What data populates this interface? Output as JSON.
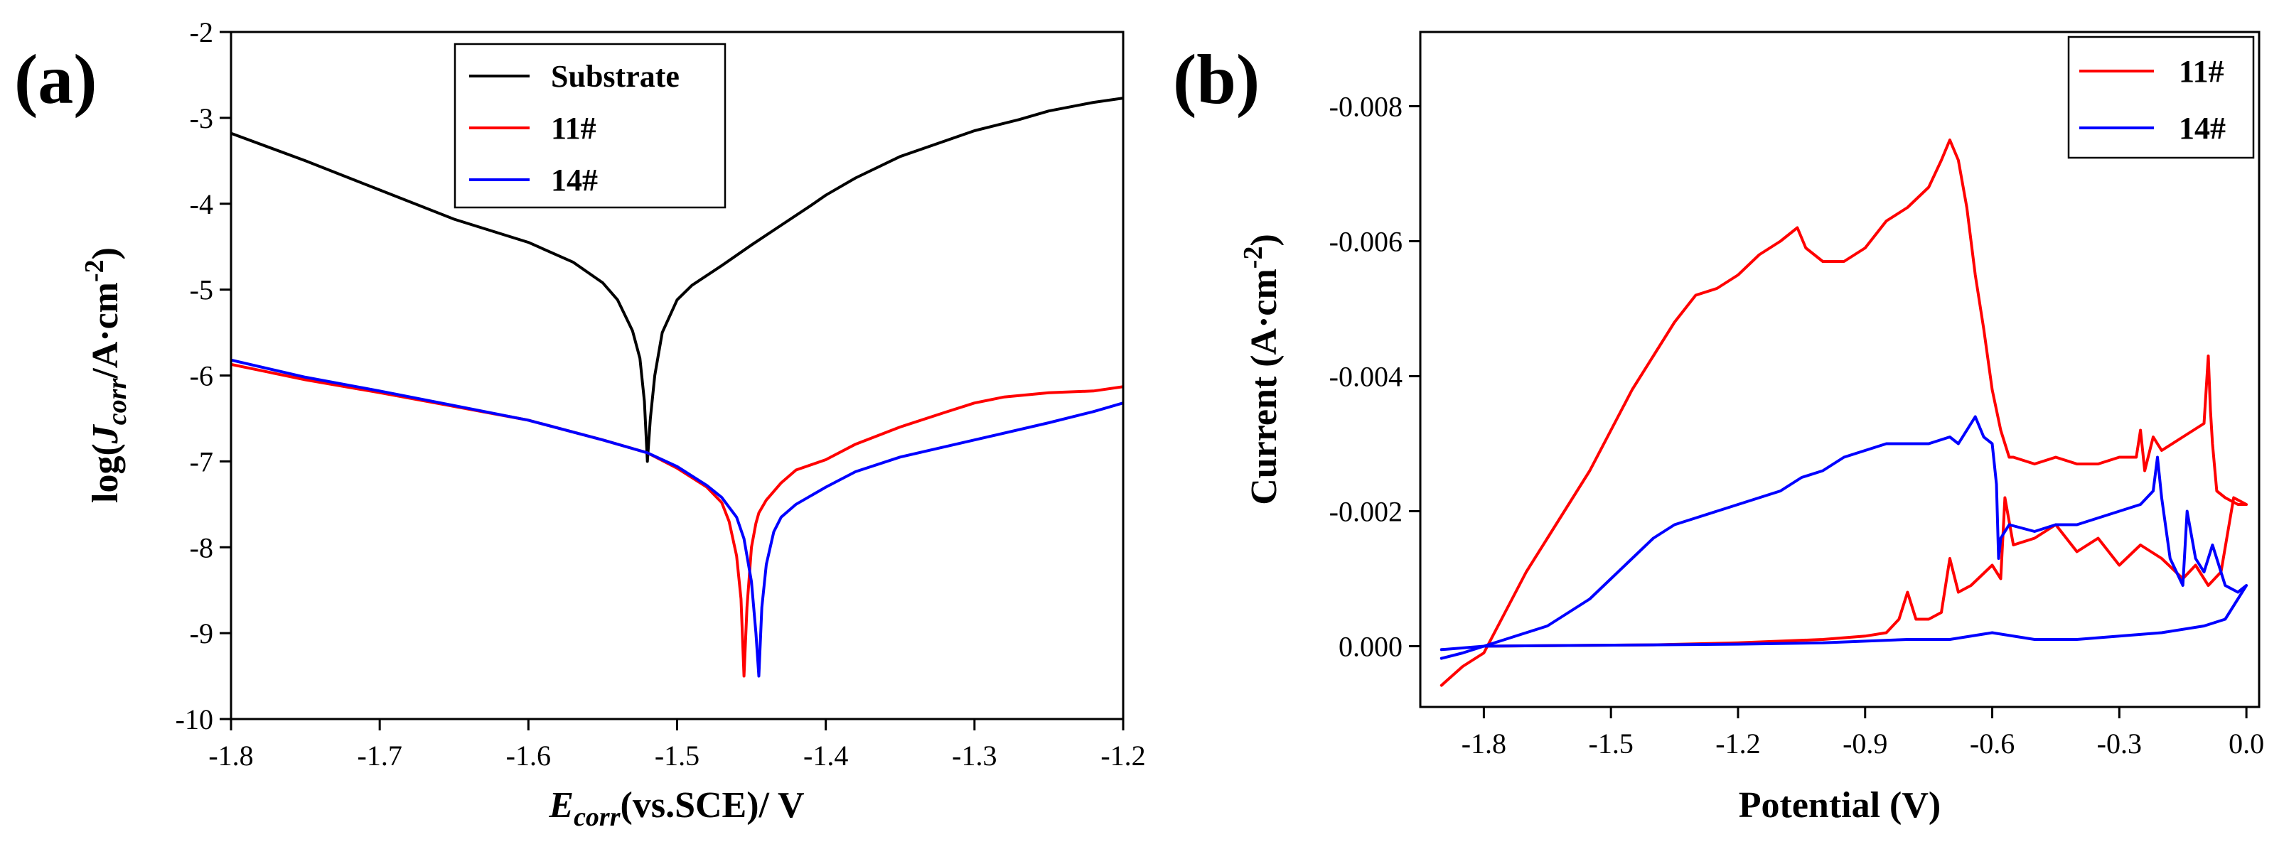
{
  "chart_data": [
    {
      "panel": "(a)",
      "type": "line",
      "xlabel_main": "E",
      "xlabel_sub": "corr",
      "xlabel_rest": "(vs.SCE)/ V",
      "ylabel_pre": "log(",
      "ylabel_main": "J",
      "ylabel_sub": "corr",
      "ylabel_rest": "/A·cm",
      "ylabel_sup": "-2",
      "ylabel_close": ")",
      "xlim": [
        -1.8,
        -1.2
      ],
      "ylim": [
        -10,
        -2
      ],
      "xticks": [
        -1.8,
        -1.7,
        -1.6,
        -1.5,
        -1.4,
        -1.3,
        -1.2
      ],
      "xtick_labels": [
        "-1.8",
        "-1.7",
        "-1.6",
        "-1.5",
        "-1.4",
        "-1.3",
        "-1.2"
      ],
      "yticks": [
        -10,
        -9,
        -8,
        -7,
        -6,
        -5,
        -4,
        -3,
        -2
      ],
      "ytick_labels": [
        "-10",
        "-9",
        "-8",
        "-7",
        "-6",
        "-5",
        "-4",
        "-3",
        "-2"
      ],
      "legend_position": "top-center",
      "series": [
        {
          "name": "Substrate",
          "color": "#000000",
          "x": [
            -1.8,
            -1.75,
            -1.7,
            -1.65,
            -1.6,
            -1.57,
            -1.55,
            -1.54,
            -1.53,
            -1.525,
            -1.522,
            -1.52,
            -1.518,
            -1.515,
            -1.51,
            -1.5,
            -1.49,
            -1.47,
            -1.45,
            -1.43,
            -1.41,
            -1.4,
            -1.38,
            -1.35,
            -1.3,
            -1.27,
            -1.25,
            -1.22,
            -1.2
          ],
          "y": [
            -3.18,
            -3.5,
            -3.84,
            -4.18,
            -4.45,
            -4.68,
            -4.92,
            -5.12,
            -5.48,
            -5.8,
            -6.3,
            -7.0,
            -6.5,
            -6.0,
            -5.5,
            -5.12,
            -4.95,
            -4.72,
            -4.48,
            -4.25,
            -4.02,
            -3.9,
            -3.7,
            -3.45,
            -3.15,
            -3.02,
            -2.92,
            -2.82,
            -2.77
          ]
        },
        {
          "name": "11#",
          "color": "#ff0000",
          "x": [
            -1.8,
            -1.75,
            -1.7,
            -1.65,
            -1.6,
            -1.55,
            -1.52,
            -1.5,
            -1.48,
            -1.47,
            -1.465,
            -1.46,
            -1.457,
            -1.455,
            -1.453,
            -1.45,
            -1.447,
            -1.445,
            -1.44,
            -1.43,
            -1.42,
            -1.4,
            -1.38,
            -1.35,
            -1.32,
            -1.3,
            -1.28,
            -1.25,
            -1.22,
            -1.2
          ],
          "y": [
            -5.87,
            -6.05,
            -6.2,
            -6.36,
            -6.52,
            -6.75,
            -6.9,
            -7.08,
            -7.3,
            -7.48,
            -7.7,
            -8.1,
            -8.6,
            -9.5,
            -8.7,
            -8.0,
            -7.72,
            -7.6,
            -7.45,
            -7.25,
            -7.1,
            -6.98,
            -6.8,
            -6.6,
            -6.43,
            -6.32,
            -6.25,
            -6.2,
            -6.18,
            -6.13
          ]
        },
        {
          "name": "14#",
          "color": "#0000ff",
          "x": [
            -1.8,
            -1.75,
            -1.7,
            -1.65,
            -1.6,
            -1.55,
            -1.52,
            -1.5,
            -1.48,
            -1.47,
            -1.46,
            -1.455,
            -1.45,
            -1.447,
            -1.445,
            -1.443,
            -1.44,
            -1.435,
            -1.43,
            -1.42,
            -1.41,
            -1.4,
            -1.38,
            -1.35,
            -1.3,
            -1.25,
            -1.22,
            -1.2
          ],
          "y": [
            -5.82,
            -6.02,
            -6.18,
            -6.35,
            -6.52,
            -6.75,
            -6.9,
            -7.06,
            -7.28,
            -7.42,
            -7.65,
            -7.9,
            -8.4,
            -9.0,
            -9.5,
            -8.7,
            -8.2,
            -7.82,
            -7.65,
            -7.5,
            -7.4,
            -7.3,
            -7.12,
            -6.95,
            -6.75,
            -6.55,
            -6.42,
            -6.32
          ]
        }
      ]
    },
    {
      "panel": "(b)",
      "type": "line",
      "xlabel": "Potential (V)",
      "ylabel_pre": "Current (A·cm",
      "ylabel_sup": "-2",
      "ylabel_close": ")",
      "xlim": [
        -1.95,
        0.03
      ],
      "ylim": [
        0.0009,
        -0.0091
      ],
      "xticks": [
        -1.8,
        -1.5,
        -1.2,
        -0.9,
        -0.6,
        -0.3,
        0.0
      ],
      "xtick_labels": [
        "-1.8",
        "-1.5",
        "-1.2",
        "-0.9",
        "-0.6",
        "-0.3",
        "0.0"
      ],
      "yticks": [
        0.0,
        -0.002,
        -0.004,
        -0.006,
        -0.008
      ],
      "ytick_labels": [
        "0.000",
        "-0.002",
        "-0.004",
        "-0.006",
        "-0.008"
      ],
      "legend_position": "top-right",
      "series": [
        {
          "name": "11#",
          "color": "#ff0000",
          "x": [
            -1.9,
            -1.85,
            -1.8,
            -1.75,
            -1.7,
            -1.65,
            -1.6,
            -1.55,
            -1.5,
            -1.45,
            -1.4,
            -1.35,
            -1.3,
            -1.25,
            -1.2,
            -1.15,
            -1.1,
            -1.06,
            -1.04,
            -1.0,
            -0.95,
            -0.9,
            -0.85,
            -0.8,
            -0.75,
            -0.72,
            -0.7,
            -0.68,
            -0.66,
            -0.64,
            -0.62,
            -0.6,
            -0.58,
            -0.56,
            -0.55,
            -0.5,
            -0.45,
            -0.4,
            -0.35,
            -0.3,
            -0.26,
            -0.25,
            -0.24,
            -0.22,
            -0.2,
            -0.15,
            -0.1,
            -0.09,
            -0.085,
            -0.08,
            -0.07,
            -0.05,
            -0.02,
            0.0,
            -0.03,
            -0.06,
            -0.09,
            -0.12,
            -0.15,
            -0.2,
            -0.25,
            -0.3,
            -0.35,
            -0.4,
            -0.45,
            -0.5,
            -0.55,
            -0.57,
            -0.58,
            -0.6,
            -0.65,
            -0.68,
            -0.7,
            -0.72,
            -0.75,
            -0.78,
            -0.8,
            -0.82,
            -0.85,
            -0.9,
            -1.0,
            -1.2,
            -1.4,
            -1.6,
            -1.8
          ],
          "y": [
            0.00058,
            0.0003,
            0.0001,
            -0.0005,
            -0.0011,
            -0.0016,
            -0.0021,
            -0.0026,
            -0.0032,
            -0.0038,
            -0.0043,
            -0.0048,
            -0.0052,
            -0.0053,
            -0.0055,
            -0.0058,
            -0.006,
            -0.0062,
            -0.0059,
            -0.0057,
            -0.0057,
            -0.0059,
            -0.0063,
            -0.0065,
            -0.0068,
            -0.0072,
            -0.0075,
            -0.0072,
            -0.0065,
            -0.0055,
            -0.0047,
            -0.0038,
            -0.0032,
            -0.0028,
            -0.0028,
            -0.0027,
            -0.0028,
            -0.0027,
            -0.0027,
            -0.0028,
            -0.0028,
            -0.0032,
            -0.0026,
            -0.0031,
            -0.0029,
            -0.0031,
            -0.0033,
            -0.0043,
            -0.0035,
            -0.003,
            -0.0023,
            -0.0022,
            -0.0021,
            -0.0021,
            -0.0022,
            -0.0011,
            -0.0009,
            -0.0012,
            -0.001,
            -0.0013,
            -0.0015,
            -0.0012,
            -0.0016,
            -0.0014,
            -0.0018,
            -0.0016,
            -0.0015,
            -0.0022,
            -0.001,
            -0.0012,
            -0.0009,
            -0.0008,
            -0.0013,
            -0.0005,
            -0.0004,
            -0.0004,
            -0.0008,
            -0.0004,
            -0.0002,
            -0.00015,
            -0.0001,
            -5e-05,
            -2e-05,
            -1e-05,
            0.0
          ]
        },
        {
          "name": "14#",
          "color": "#0000ff",
          "x": [
            -1.9,
            -1.85,
            -1.8,
            -1.75,
            -1.7,
            -1.65,
            -1.6,
            -1.55,
            -1.5,
            -1.45,
            -1.4,
            -1.35,
            -1.3,
            -1.25,
            -1.2,
            -1.15,
            -1.1,
            -1.05,
            -1.0,
            -0.95,
            -0.9,
            -0.85,
            -0.8,
            -0.75,
            -0.7,
            -0.68,
            -0.66,
            -0.64,
            -0.62,
            -0.6,
            -0.59,
            -0.585,
            -0.58,
            -0.56,
            -0.5,
            -0.45,
            -0.4,
            -0.35,
            -0.3,
            -0.25,
            -0.22,
            -0.21,
            -0.2,
            -0.18,
            -0.15,
            -0.14,
            -0.12,
            -0.1,
            -0.08,
            -0.05,
            -0.02,
            0.0,
            -0.05,
            -0.1,
            -0.2,
            -0.3,
            -0.4,
            -0.5,
            -0.6,
            -0.7,
            -0.8,
            -1.0,
            -1.2,
            -1.4,
            -1.6,
            -1.8,
            -1.9
          ],
          "y": [
            0.00018,
            0.0001,
            0.0,
            -0.0001,
            -0.0002,
            -0.0003,
            -0.0005,
            -0.0007,
            -0.001,
            -0.0013,
            -0.0016,
            -0.0018,
            -0.0019,
            -0.002,
            -0.0021,
            -0.0022,
            -0.0023,
            -0.0025,
            -0.0026,
            -0.0028,
            -0.0029,
            -0.003,
            -0.003,
            -0.003,
            -0.0031,
            -0.003,
            -0.0032,
            -0.0034,
            -0.0031,
            -0.003,
            -0.0024,
            -0.0013,
            -0.0016,
            -0.0018,
            -0.0017,
            -0.0018,
            -0.0018,
            -0.0019,
            -0.002,
            -0.0021,
            -0.0023,
            -0.0028,
            -0.0022,
            -0.0013,
            -0.0009,
            -0.002,
            -0.0013,
            -0.0011,
            -0.0015,
            -0.0009,
            -0.0008,
            -0.0009,
            -0.0004,
            -0.0003,
            -0.0002,
            -0.00015,
            -0.0001,
            -0.0001,
            -0.0002,
            -0.0001,
            -0.0001,
            -5e-05,
            -3e-05,
            -2e-05,
            -1e-05,
            0.0,
            5e-05
          ]
        }
      ]
    }
  ]
}
